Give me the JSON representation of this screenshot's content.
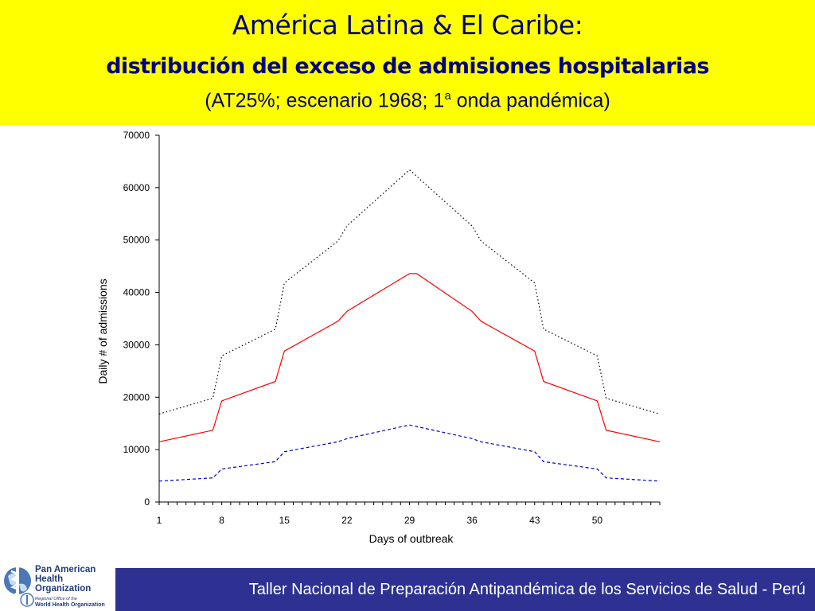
{
  "header": {
    "title": "América Latina & El Caribe:",
    "subtitle": "distribución del exceso de admisiones hospitalarias",
    "note_before": "(AT25%; escenario 1968; 1",
    "note_sup": "a",
    "note_after": " onda pandémica)"
  },
  "footer": {
    "text": "Taller Nacional de Preparación Antipandémica de los Servicios de Salud - Perú"
  },
  "logo": {
    "name_lines": [
      "Pan American",
      "Health",
      "Organization"
    ],
    "sub_line": "Regional Office of the",
    "sub_bold": "World Health Organization"
  },
  "colors": {
    "banner": "#ffff00",
    "title": "#000080",
    "footer": "#2e3192",
    "mean_series": "#ff0000",
    "upper_series": "#000000",
    "lower_series": "#0000cc"
  },
  "chart_data": {
    "type": "line",
    "xlabel": "Days of outbreak",
    "ylabel": "Daily # of admissions",
    "xlim": [
      1,
      57
    ],
    "ylim": [
      0,
      70000
    ],
    "yticks": [
      0,
      10000,
      20000,
      30000,
      40000,
      50000,
      60000,
      70000
    ],
    "xticks": [
      1,
      8,
      15,
      22,
      29,
      36,
      43,
      50
    ],
    "grid": false,
    "series": [
      {
        "style": "dotted",
        "color": "#000000",
        "points": [
          [
            1,
            16800
          ],
          [
            7,
            19800
          ],
          [
            8,
            27900
          ],
          [
            14,
            33000
          ],
          [
            15,
            41800
          ],
          [
            21,
            49800
          ],
          [
            22,
            52700
          ],
          [
            29,
            63400
          ],
          [
            36,
            52700
          ],
          [
            37,
            49800
          ],
          [
            43,
            41800
          ],
          [
            44,
            33000
          ],
          [
            50,
            27900
          ],
          [
            51,
            19800
          ],
          [
            57,
            16800
          ]
        ]
      },
      {
        "style": "solid",
        "color": "#ff0000",
        "points": [
          [
            1,
            11500
          ],
          [
            7,
            13700
          ],
          [
            8,
            19300
          ],
          [
            14,
            23000
          ],
          [
            15,
            28800
          ],
          [
            21,
            34500
          ],
          [
            22,
            36400
          ],
          [
            29,
            43600
          ],
          [
            29.8,
            43600
          ],
          [
            36,
            36400
          ],
          [
            37,
            34500
          ],
          [
            43,
            28800
          ],
          [
            44,
            23000
          ],
          [
            50,
            19300
          ],
          [
            51,
            13700
          ],
          [
            57,
            11500
          ]
        ]
      },
      {
        "style": "dashed",
        "color": "#0000cc",
        "points": [
          [
            1,
            4000
          ],
          [
            7,
            4600
          ],
          [
            8,
            6300
          ],
          [
            14,
            7700
          ],
          [
            15,
            9600
          ],
          [
            21,
            11500
          ],
          [
            22,
            12100
          ],
          [
            29,
            14700
          ],
          [
            36,
            12100
          ],
          [
            37,
            11500
          ],
          [
            43,
            9600
          ],
          [
            44,
            7700
          ],
          [
            50,
            6300
          ],
          [
            51,
            4600
          ],
          [
            57,
            4000
          ]
        ]
      }
    ]
  }
}
